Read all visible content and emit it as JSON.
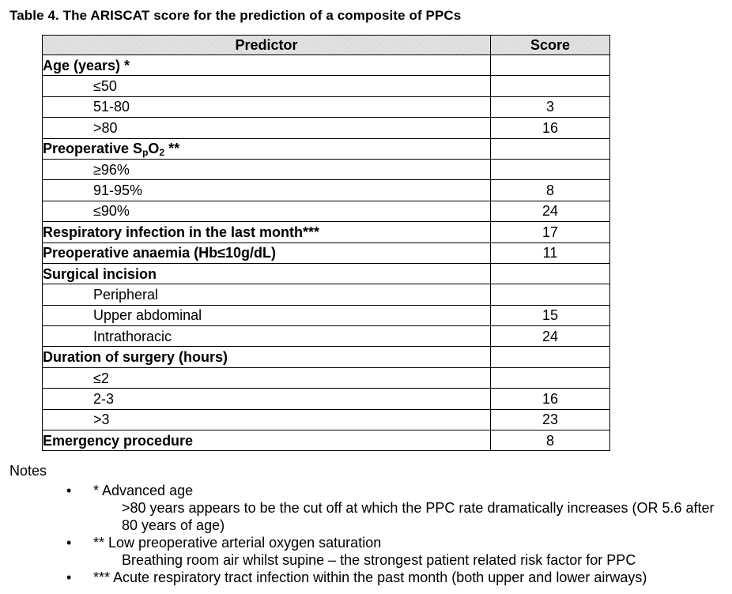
{
  "title": "Table 4.  The ARISCAT score for the prediction of a composite of PPCs",
  "table": {
    "headers": [
      "Predictor",
      "Score"
    ],
    "rows": [
      {
        "predictor": "Age (years) *",
        "score": "",
        "kind": "cat"
      },
      {
        "predictor": "≤50",
        "score": "",
        "kind": "sub"
      },
      {
        "predictor": "51-80",
        "score": "3",
        "kind": "sub"
      },
      {
        "predictor": ">80",
        "score": "16",
        "kind": "sub"
      },
      {
        "predictor": "Preoperative SpO2 **",
        "score": "",
        "kind": "cat"
      },
      {
        "predictor": "≥96%",
        "score": "",
        "kind": "sub"
      },
      {
        "predictor": "91-95%",
        "score": "8",
        "kind": "sub"
      },
      {
        "predictor": "≤90%",
        "score": "24",
        "kind": "sub"
      },
      {
        "predictor": "Respiratory infection in the last month***",
        "score": "17",
        "kind": "cat"
      },
      {
        "predictor": "Preoperative anaemia (Hb≤10g/dL)",
        "score": "11",
        "kind": "cat"
      },
      {
        "predictor": "Surgical incision",
        "score": "",
        "kind": "cat"
      },
      {
        "predictor": "Peripheral",
        "score": "",
        "kind": "sub"
      },
      {
        "predictor": "Upper abdominal",
        "score": "15",
        "kind": "sub"
      },
      {
        "predictor": "Intrathoracic",
        "score": "24",
        "kind": "sub"
      },
      {
        "predictor": "Duration of surgery (hours)",
        "score": "",
        "kind": "cat"
      },
      {
        "predictor": "≤2",
        "score": "",
        "kind": "sub"
      },
      {
        "predictor": "2-3",
        "score": "16",
        "kind": "sub"
      },
      {
        "predictor": ">3",
        "score": "23",
        "kind": "sub"
      },
      {
        "predictor": "Emergency procedure",
        "score": "8",
        "kind": "cat"
      }
    ]
  },
  "notes": {
    "title": "Notes",
    "items": [
      {
        "heading": "* Advanced age",
        "detail": ">80 years appears to be the cut off at which the PPC rate dramatically increases (OR 5.6 after 80 years of age)"
      },
      {
        "heading": "** Low preoperative arterial oxygen saturation",
        "detail": "Breathing room air whilst supine – the strongest patient related risk factor for PPC"
      },
      {
        "heading": "*** Acute respiratory tract infection within the past month (both upper and lower airways)",
        "detail": ""
      }
    ]
  }
}
